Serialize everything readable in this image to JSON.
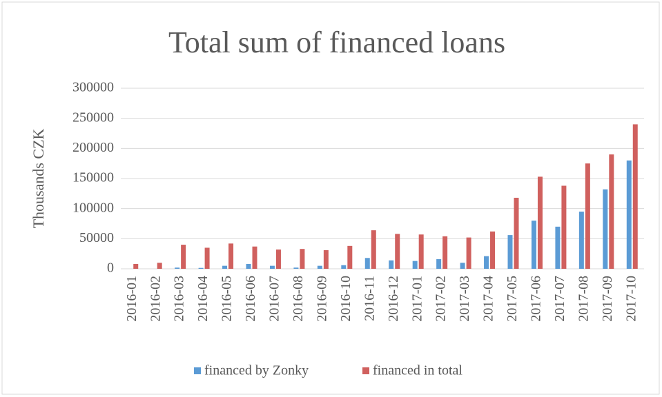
{
  "chart_data": {
    "type": "bar",
    "title": "Total sum of financed loans",
    "y_label": "Thousands CZK",
    "categories": [
      "2016-01",
      "2016-02",
      "2016-03",
      "2016-04",
      "2016-05",
      "2016-06",
      "2016-07",
      "2016-08",
      "2016-09",
      "2016-10",
      "2016-11",
      "2016-12",
      "2017-01",
      "2017-02",
      "2017-03",
      "2017-04",
      "2017-05",
      "2017-06",
      "2017-07",
      "2017-08",
      "2017-09",
      "2017-10"
    ],
    "series": [
      {
        "name": "financed by Zonky",
        "color": "#5b9bd5",
        "values": [
          0,
          0,
          2000,
          1500,
          5000,
          8000,
          5000,
          2000,
          5000,
          6000,
          18000,
          14000,
          13000,
          16000,
          10000,
          21000,
          56000,
          80000,
          70000,
          95000,
          132000,
          180000
        ]
      },
      {
        "name": "financed in total",
        "color": "#d0605e",
        "values": [
          8000,
          10000,
          40000,
          35000,
          42000,
          37000,
          32000,
          33000,
          31000,
          38000,
          64000,
          58000,
          57000,
          54000,
          52000,
          62000,
          118000,
          153000,
          138000,
          175000,
          190000,
          240000
        ]
      }
    ],
    "ylim": [
      0,
      300000
    ],
    "yticks": [
      0,
      50000,
      100000,
      150000,
      200000,
      250000,
      300000
    ],
    "grid": true,
    "legend": "bottom"
  }
}
